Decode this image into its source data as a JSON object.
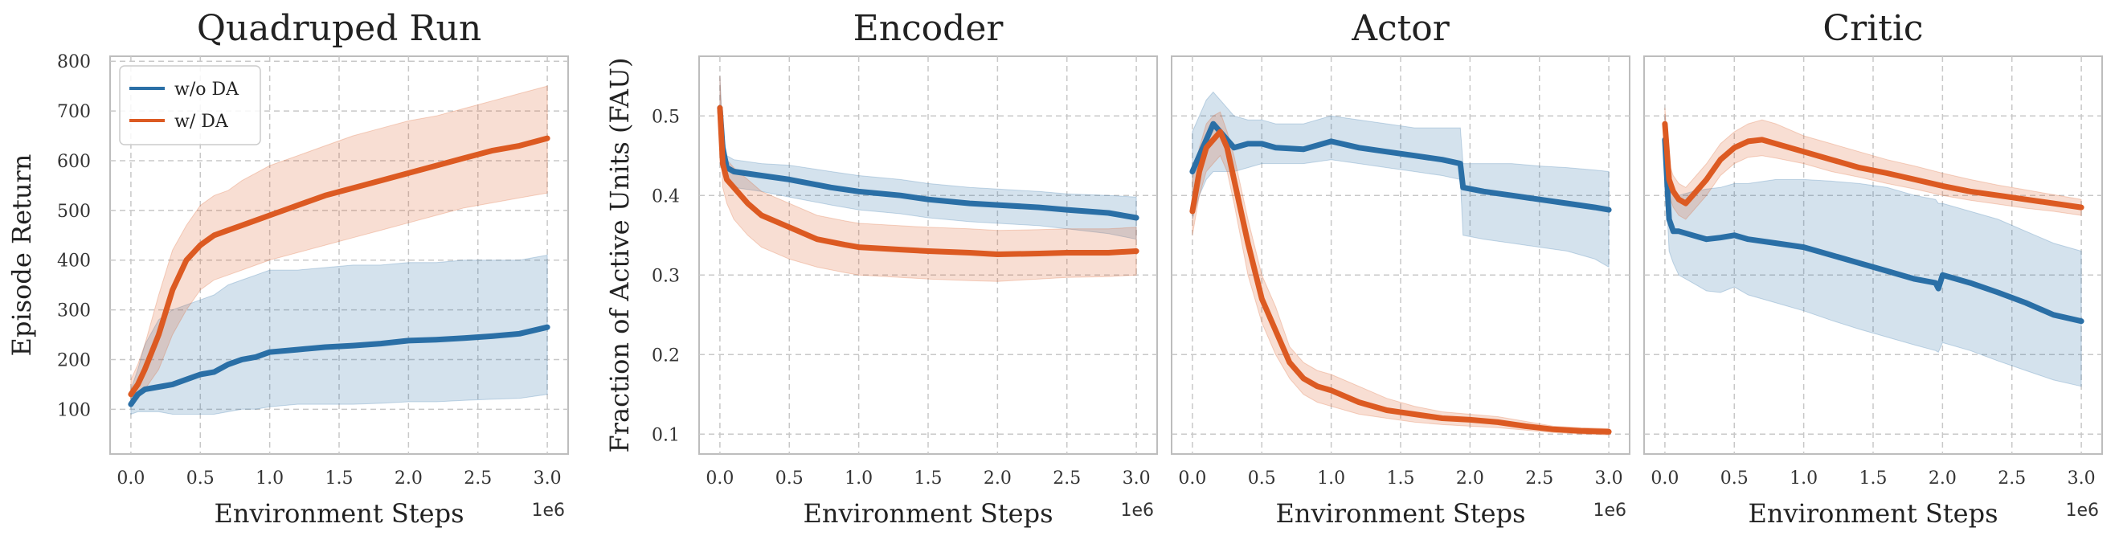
{
  "colors": {
    "wo_da": "#2a6fa6",
    "w_da": "#dc5a22"
  },
  "legend": {
    "placement": "top-left",
    "items": [
      {
        "label": "w/o DA",
        "color": "#2a6fa6"
      },
      {
        "label": "w/ DA",
        "color": "#dc5a22"
      }
    ]
  },
  "chart_data": [
    {
      "type": "line",
      "title": "Quadruped Run",
      "xlabel": "Environment Steps",
      "ylabel": "Episode Return",
      "x_multiplier": "1e6",
      "xlim": [
        -0.15,
        3.15
      ],
      "ylim": [
        10,
        810
      ],
      "xticks": [
        0.0,
        0.5,
        1.0,
        1.5,
        2.0,
        2.5,
        3.0
      ],
      "xtick_labels": [
        "0.0",
        "0.5",
        "1.0",
        "1.5",
        "2.0",
        "2.5",
        "3.0"
      ],
      "yticks": [
        100,
        200,
        300,
        400,
        500,
        600,
        700,
        800
      ],
      "ytick_labels": [
        "100",
        "200",
        "300",
        "400",
        "500",
        "600",
        "700",
        "800"
      ],
      "grid": true,
      "show_legend": true,
      "series": [
        {
          "name": "w/o DA",
          "x": [
            0.0,
            0.05,
            0.1,
            0.2,
            0.3,
            0.4,
            0.5,
            0.6,
            0.7,
            0.8,
            0.9,
            1.0,
            1.2,
            1.4,
            1.6,
            1.8,
            2.0,
            2.2,
            2.4,
            2.6,
            2.8,
            3.0
          ],
          "y": [
            110,
            130,
            140,
            145,
            150,
            160,
            170,
            175,
            190,
            200,
            205,
            215,
            220,
            225,
            228,
            232,
            238,
            240,
            243,
            247,
            252,
            265
          ],
          "lower": [
            90,
            95,
            95,
            95,
            90,
            90,
            90,
            90,
            95,
            100,
            100,
            105,
            110,
            110,
            110,
            112,
            115,
            115,
            118,
            120,
            122,
            130
          ],
          "upper": [
            140,
            180,
            230,
            280,
            300,
            310,
            320,
            330,
            350,
            360,
            370,
            380,
            380,
            385,
            390,
            390,
            395,
            395,
            400,
            400,
            400,
            410
          ]
        },
        {
          "name": "w/ DA",
          "x": [
            0.0,
            0.05,
            0.1,
            0.2,
            0.3,
            0.4,
            0.5,
            0.6,
            0.7,
            0.8,
            0.9,
            1.0,
            1.2,
            1.4,
            1.6,
            1.8,
            2.0,
            2.2,
            2.4,
            2.6,
            2.8,
            3.0
          ],
          "y": [
            130,
            150,
            180,
            250,
            340,
            400,
            430,
            450,
            460,
            470,
            480,
            490,
            510,
            530,
            545,
            560,
            575,
            590,
            605,
            620,
            630,
            645
          ],
          "lower": [
            110,
            120,
            140,
            180,
            250,
            300,
            340,
            360,
            370,
            380,
            390,
            400,
            415,
            430,
            445,
            460,
            475,
            490,
            505,
            515,
            525,
            535
          ],
          "upper": [
            160,
            190,
            230,
            330,
            420,
            470,
            510,
            530,
            540,
            560,
            575,
            590,
            610,
            630,
            650,
            665,
            680,
            690,
            705,
            720,
            735,
            750
          ]
        }
      ]
    },
    {
      "type": "line",
      "title": "Encoder",
      "xlabel": "Environment Steps",
      "ylabel": "Fraction of Active Units (FAU)",
      "x_multiplier": "1e6",
      "xlim": [
        -0.15,
        3.15
      ],
      "ylim": [
        0.075,
        0.575
      ],
      "xticks": [
        0.0,
        0.5,
        1.0,
        1.5,
        2.0,
        2.5,
        3.0
      ],
      "xtick_labels": [
        "0.0",
        "0.5",
        "1.0",
        "1.5",
        "2.0",
        "2.5",
        "3.0"
      ],
      "yticks": [
        0.1,
        0.2,
        0.3,
        0.4,
        0.5
      ],
      "ytick_labels": [
        "0.1",
        "0.2",
        "0.3",
        "0.4",
        "0.5"
      ],
      "grid": true,
      "show_legend": false,
      "series": [
        {
          "name": "w/o DA",
          "x": [
            0.0,
            0.02,
            0.05,
            0.1,
            0.3,
            0.5,
            0.8,
            1.0,
            1.3,
            1.5,
            1.8,
            2.0,
            2.3,
            2.5,
            2.8,
            3.0
          ],
          "y": [
            0.51,
            0.46,
            0.435,
            0.43,
            0.425,
            0.42,
            0.41,
            0.405,
            0.4,
            0.395,
            0.39,
            0.388,
            0.385,
            0.382,
            0.378,
            0.372
          ],
          "lower": [
            0.48,
            0.44,
            0.42,
            0.41,
            0.405,
            0.398,
            0.388,
            0.382,
            0.377,
            0.372,
            0.367,
            0.365,
            0.362,
            0.358,
            0.352,
            0.345
          ],
          "upper": [
            0.55,
            0.48,
            0.45,
            0.445,
            0.44,
            0.438,
            0.43,
            0.425,
            0.42,
            0.415,
            0.41,
            0.408,
            0.405,
            0.402,
            0.4,
            0.398
          ]
        },
        {
          "name": "w/ DA",
          "x": [
            0.0,
            0.02,
            0.05,
            0.1,
            0.2,
            0.3,
            0.5,
            0.7,
            0.9,
            1.0,
            1.3,
            1.5,
            1.8,
            2.0,
            2.3,
            2.5,
            2.8,
            3.0
          ],
          "y": [
            0.51,
            0.44,
            0.42,
            0.41,
            0.39,
            0.375,
            0.36,
            0.345,
            0.338,
            0.335,
            0.332,
            0.33,
            0.328,
            0.326,
            0.327,
            0.328,
            0.328,
            0.33
          ],
          "lower": [
            0.48,
            0.41,
            0.39,
            0.37,
            0.35,
            0.335,
            0.32,
            0.31,
            0.303,
            0.3,
            0.297,
            0.295,
            0.293,
            0.292,
            0.295,
            0.297,
            0.298,
            0.3
          ],
          "upper": [
            0.55,
            0.465,
            0.445,
            0.435,
            0.42,
            0.405,
            0.39,
            0.375,
            0.368,
            0.365,
            0.362,
            0.36,
            0.358,
            0.356,
            0.357,
            0.358,
            0.358,
            0.36
          ]
        }
      ]
    },
    {
      "type": "line",
      "title": "Actor",
      "xlabel": "Environment Steps",
      "ylabel": "",
      "x_multiplier": "1e6",
      "xlim": [
        -0.15,
        3.15
      ],
      "ylim": [
        0.075,
        0.575
      ],
      "xticks": [
        0.0,
        0.5,
        1.0,
        1.5,
        2.0,
        2.5,
        3.0
      ],
      "xtick_labels": [
        "0.0",
        "0.5",
        "1.0",
        "1.5",
        "2.0",
        "2.5",
        "3.0"
      ],
      "yticks": [
        0.1,
        0.2,
        0.3,
        0.4,
        0.5
      ],
      "ytick_labels": [],
      "grid": true,
      "show_legend": false,
      "series": [
        {
          "name": "w/o DA",
          "x": [
            0.0,
            0.05,
            0.1,
            0.15,
            0.2,
            0.3,
            0.4,
            0.5,
            0.6,
            0.8,
            1.0,
            1.2,
            1.4,
            1.6,
            1.8,
            1.93,
            1.95,
            2.1,
            2.3,
            2.5,
            2.7,
            2.9,
            3.0
          ],
          "y": [
            0.43,
            0.45,
            0.47,
            0.49,
            0.48,
            0.46,
            0.465,
            0.465,
            0.46,
            0.458,
            0.468,
            0.46,
            0.455,
            0.45,
            0.445,
            0.44,
            0.41,
            0.405,
            0.4,
            0.395,
            0.39,
            0.385,
            0.382
          ],
          "lower": [
            0.37,
            0.4,
            0.42,
            0.43,
            0.43,
            0.43,
            0.435,
            0.44,
            0.44,
            0.44,
            0.445,
            0.44,
            0.435,
            0.43,
            0.425,
            0.42,
            0.35,
            0.345,
            0.34,
            0.335,
            0.33,
            0.32,
            0.31
          ],
          "upper": [
            0.48,
            0.5,
            0.52,
            0.53,
            0.52,
            0.5,
            0.495,
            0.495,
            0.49,
            0.49,
            0.5,
            0.495,
            0.49,
            0.485,
            0.485,
            0.485,
            0.44,
            0.44,
            0.44,
            0.437,
            0.435,
            0.432,
            0.43
          ]
        },
        {
          "name": "w/ DA",
          "x": [
            0.0,
            0.05,
            0.1,
            0.15,
            0.2,
            0.25,
            0.3,
            0.4,
            0.5,
            0.6,
            0.7,
            0.8,
            0.9,
            1.0,
            1.2,
            1.4,
            1.6,
            1.8,
            2.0,
            2.2,
            2.4,
            2.6,
            2.8,
            3.0
          ],
          "y": [
            0.38,
            0.43,
            0.46,
            0.47,
            0.48,
            0.46,
            0.42,
            0.34,
            0.27,
            0.23,
            0.19,
            0.17,
            0.16,
            0.155,
            0.14,
            0.13,
            0.125,
            0.12,
            0.118,
            0.115,
            0.11,
            0.106,
            0.104,
            0.103
          ],
          "lower": [
            0.35,
            0.4,
            0.43,
            0.44,
            0.45,
            0.43,
            0.39,
            0.3,
            0.24,
            0.2,
            0.17,
            0.15,
            0.14,
            0.135,
            0.125,
            0.12,
            0.115,
            0.112,
            0.11,
            0.108,
            0.105,
            0.102,
            0.1,
            0.099
          ],
          "upper": [
            0.42,
            0.46,
            0.49,
            0.5,
            0.505,
            0.48,
            0.45,
            0.37,
            0.3,
            0.26,
            0.21,
            0.19,
            0.18,
            0.175,
            0.16,
            0.145,
            0.135,
            0.128,
            0.125,
            0.122,
            0.116,
            0.11,
            0.108,
            0.107
          ]
        }
      ]
    },
    {
      "type": "line",
      "title": "Critic",
      "xlabel": "Environment Steps",
      "ylabel": "",
      "x_multiplier": "1e6",
      "xlim": [
        -0.15,
        3.15
      ],
      "ylim": [
        0.075,
        0.575
      ],
      "xticks": [
        0.0,
        0.5,
        1.0,
        1.5,
        2.0,
        2.5,
        3.0
      ],
      "xtick_labels": [
        "0.0",
        "0.5",
        "1.0",
        "1.5",
        "2.0",
        "2.5",
        "3.0"
      ],
      "yticks": [
        0.1,
        0.2,
        0.3,
        0.4,
        0.5
      ],
      "ytick_labels": [],
      "grid": true,
      "show_legend": false,
      "series": [
        {
          "name": "w/o DA",
          "x": [
            0.0,
            0.03,
            0.06,
            0.1,
            0.2,
            0.3,
            0.4,
            0.5,
            0.6,
            0.8,
            1.0,
            1.2,
            1.4,
            1.6,
            1.8,
            1.95,
            1.97,
            2.0,
            2.2,
            2.4,
            2.6,
            2.8,
            3.0
          ],
          "y": [
            0.47,
            0.37,
            0.355,
            0.355,
            0.35,
            0.345,
            0.347,
            0.35,
            0.345,
            0.34,
            0.335,
            0.325,
            0.315,
            0.305,
            0.295,
            0.29,
            0.283,
            0.3,
            0.29,
            0.278,
            0.265,
            0.25,
            0.242
          ],
          "lower": [
            0.44,
            0.33,
            0.315,
            0.3,
            0.29,
            0.28,
            0.278,
            0.285,
            0.275,
            0.265,
            0.255,
            0.243,
            0.232,
            0.222,
            0.212,
            0.205,
            0.203,
            0.215,
            0.205,
            0.192,
            0.18,
            0.168,
            0.16
          ],
          "upper": [
            0.5,
            0.41,
            0.4,
            0.4,
            0.405,
            0.408,
            0.41,
            0.415,
            0.415,
            0.42,
            0.42,
            0.418,
            0.415,
            0.41,
            0.4,
            0.395,
            0.39,
            0.39,
            0.38,
            0.37,
            0.355,
            0.34,
            0.33
          ]
        },
        {
          "name": "w/ DA",
          "x": [
            0.0,
            0.03,
            0.06,
            0.1,
            0.15,
            0.2,
            0.3,
            0.4,
            0.5,
            0.6,
            0.7,
            0.8,
            1.0,
            1.2,
            1.4,
            1.6,
            1.8,
            2.0,
            2.2,
            2.4,
            2.6,
            2.8,
            3.0
          ],
          "y": [
            0.49,
            0.42,
            0.405,
            0.395,
            0.39,
            0.4,
            0.42,
            0.445,
            0.46,
            0.468,
            0.47,
            0.465,
            0.455,
            0.445,
            0.435,
            0.428,
            0.42,
            0.412,
            0.405,
            0.4,
            0.395,
            0.39,
            0.385
          ],
          "lower": [
            0.47,
            0.4,
            0.385,
            0.375,
            0.37,
            0.38,
            0.4,
            0.425,
            0.44,
            0.448,
            0.45,
            0.447,
            0.44,
            0.43,
            0.423,
            0.415,
            0.408,
            0.4,
            0.394,
            0.389,
            0.384,
            0.38,
            0.375
          ],
          "upper": [
            0.51,
            0.44,
            0.425,
            0.415,
            0.41,
            0.42,
            0.44,
            0.465,
            0.48,
            0.49,
            0.495,
            0.49,
            0.475,
            0.465,
            0.455,
            0.445,
            0.437,
            0.428,
            0.42,
            0.413,
            0.407,
            0.401,
            0.395
          ]
        }
      ]
    }
  ]
}
